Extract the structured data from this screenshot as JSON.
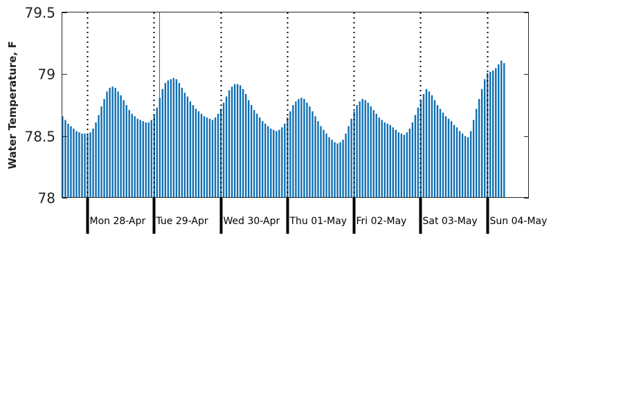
{
  "chart_data": {
    "type": "bar",
    "title": "",
    "xlabel": "",
    "ylabel": "Water Temperature, F",
    "ylim": [
      78,
      79.5
    ],
    "yticks": [
      78,
      78.5,
      79,
      79.5
    ],
    "ytick_labels": [
      "78",
      "78.5",
      "79",
      "79.5"
    ],
    "day_labels": [
      "Mon 28-Apr",
      "Tue 29-Apr",
      "Wed 30-Apr",
      "Thu 01-May",
      "Fri 02-May",
      "Sat 03-May",
      "Sun 04-May"
    ],
    "bar_color": "#0f6fb2",
    "marker_color": "#d62728",
    "marker_hour": 26,
    "start_hour": -9,
    "interval_hours": 1,
    "values": [
      78.66,
      78.63,
      78.6,
      78.58,
      78.56,
      78.54,
      78.53,
      78.52,
      78.52,
      78.51,
      78.53,
      78.56,
      78.61,
      78.67,
      78.74,
      78.8,
      78.86,
      78.89,
      78.9,
      78.89,
      78.86,
      78.83,
      78.79,
      78.75,
      78.71,
      78.68,
      78.66,
      78.64,
      78.63,
      78.62,
      78.61,
      78.61,
      78.63,
      78.67,
      78.73,
      78.81,
      78.88,
      78.93,
      78.95,
      78.96,
      78.97,
      78.96,
      78.93,
      78.89,
      78.85,
      78.82,
      78.78,
      78.75,
      78.72,
      78.7,
      78.68,
      78.66,
      78.65,
      78.64,
      78.63,
      78.65,
      78.68,
      78.72,
      78.77,
      78.82,
      78.87,
      78.9,
      78.92,
      78.92,
      78.91,
      78.88,
      78.84,
      78.79,
      78.75,
      78.71,
      78.68,
      78.65,
      78.62,
      78.6,
      78.58,
      78.56,
      78.55,
      78.54,
      78.55,
      78.57,
      78.6,
      78.65,
      78.7,
      78.75,
      78.78,
      78.8,
      78.81,
      78.8,
      78.77,
      78.74,
      78.7,
      78.66,
      78.62,
      78.58,
      78.55,
      78.52,
      78.49,
      78.47,
      78.45,
      78.44,
      78.45,
      78.47,
      78.52,
      78.58,
      78.64,
      78.7,
      78.75,
      78.78,
      78.8,
      78.79,
      78.77,
      78.74,
      78.71,
      78.68,
      78.65,
      78.63,
      78.61,
      78.6,
      78.59,
      78.57,
      78.55,
      78.53,
      78.52,
      78.51,
      78.53,
      78.56,
      78.61,
      78.67,
      78.73,
      78.79,
      78.84,
      78.88,
      78.86,
      78.83,
      78.79,
      78.75,
      78.72,
      78.69,
      78.66,
      78.64,
      78.62,
      78.59,
      78.57,
      78.54,
      78.52,
      78.5,
      78.49,
      78.54,
      78.63,
      78.72,
      78.8,
      78.88,
      78.96,
      79.01,
      79.02,
      79.03,
      79.05,
      79.08,
      79.11,
      79.09
    ]
  }
}
